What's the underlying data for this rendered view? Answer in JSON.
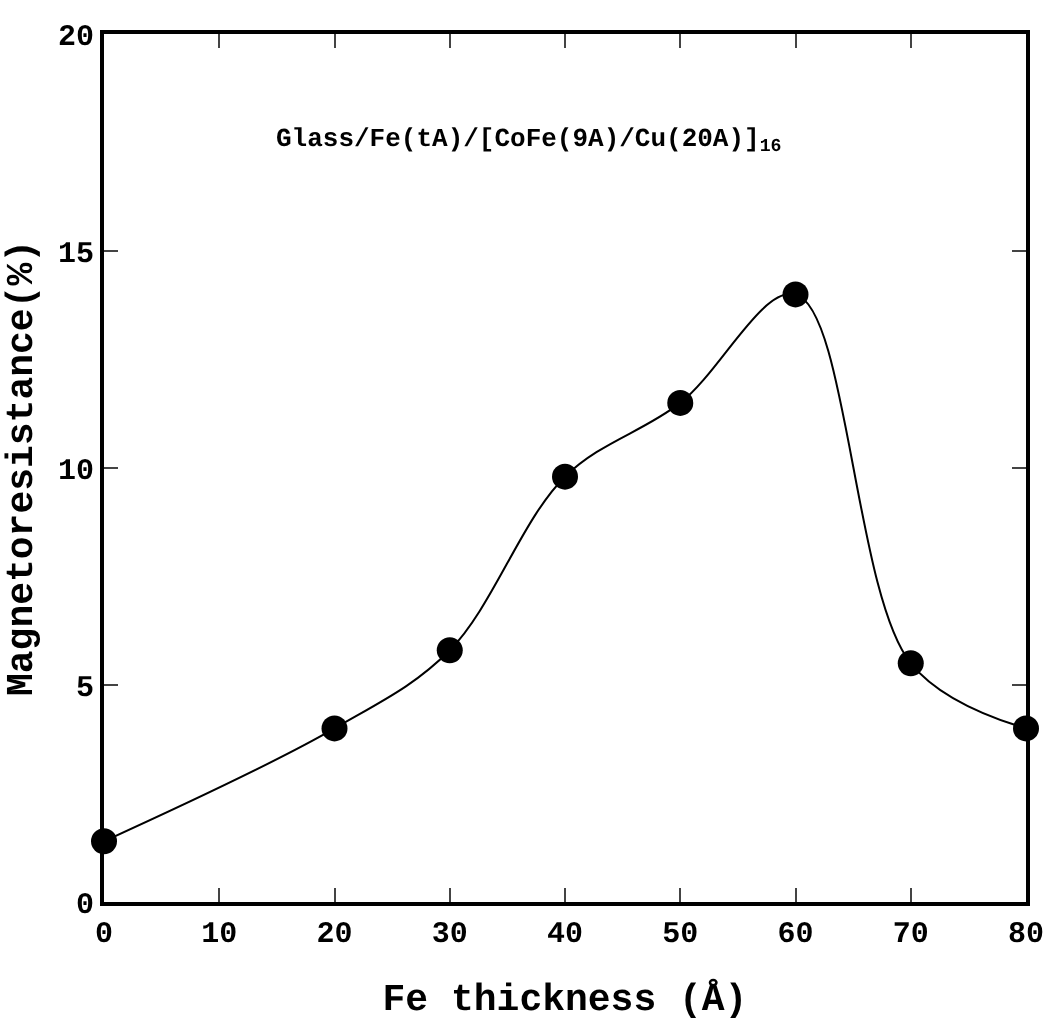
{
  "chart_data": {
    "type": "line",
    "xlabel": "Fe thickness (Å)",
    "ylabel": "Magnetoresistance(%)",
    "annotations": [
      "Glass/Fe(tA)/[CoFe(9A)/Cu(20A)]$_{16}$"
    ],
    "x": [
      0,
      20,
      30,
      40,
      50,
      60,
      70,
      80
    ],
    "series": [
      {
        "color": "#000000",
        "values": [
          1.4,
          4.0,
          5.8,
          9.8,
          11.5,
          14.0,
          5.5,
          4.0
        ]
      }
    ],
    "xlim": [
      0,
      80
    ],
    "xticks": [
      0,
      10,
      20,
      30,
      40,
      50,
      60,
      70,
      80
    ],
    "ylim": [
      0,
      20
    ],
    "yticks": [
      0,
      5,
      10,
      15,
      20
    ],
    "marker": "circle",
    "line_style": "solid"
  }
}
